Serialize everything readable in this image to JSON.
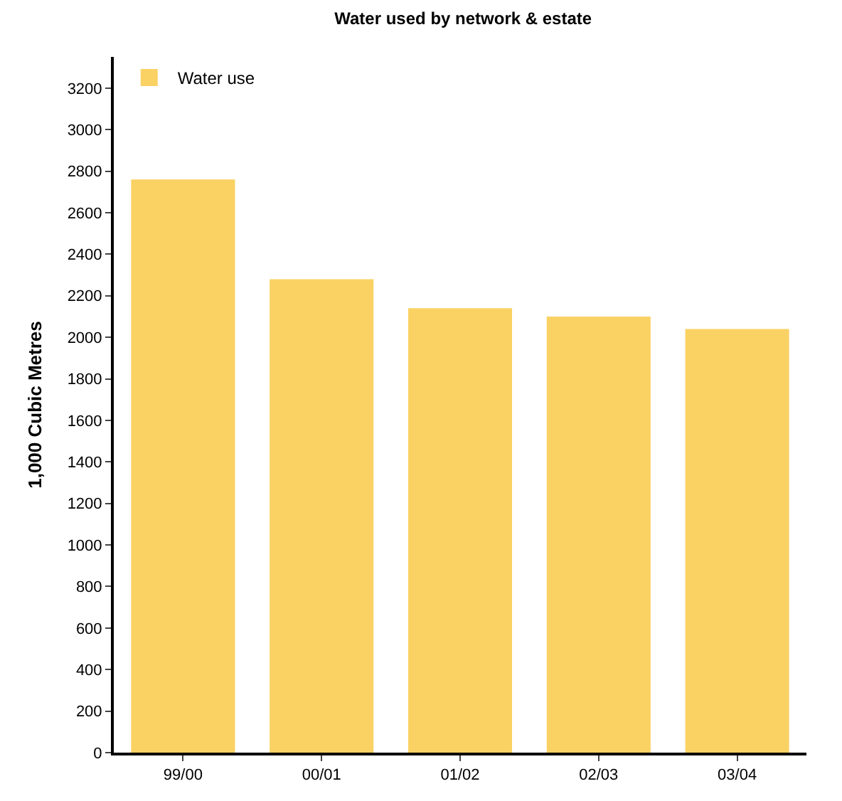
{
  "chart_data": {
    "type": "bar",
    "title": "Water used by network & estate",
    "ylabel": "1,000 Cubic Metres",
    "categories": [
      "99/00",
      "00/01",
      "01/02",
      "02/03",
      "03/04"
    ],
    "series": [
      {
        "name": "Water use",
        "color": "#fad264",
        "values": [
          2760,
          2280,
          2140,
          2100,
          2040
        ]
      }
    ],
    "ylim": [
      0,
      3350
    ],
    "yticks": [
      0,
      200,
      400,
      600,
      800,
      1000,
      1200,
      1400,
      1600,
      1800,
      2000,
      2200,
      2400,
      2600,
      2800,
      3000,
      3200
    ],
    "legend": "top left"
  }
}
